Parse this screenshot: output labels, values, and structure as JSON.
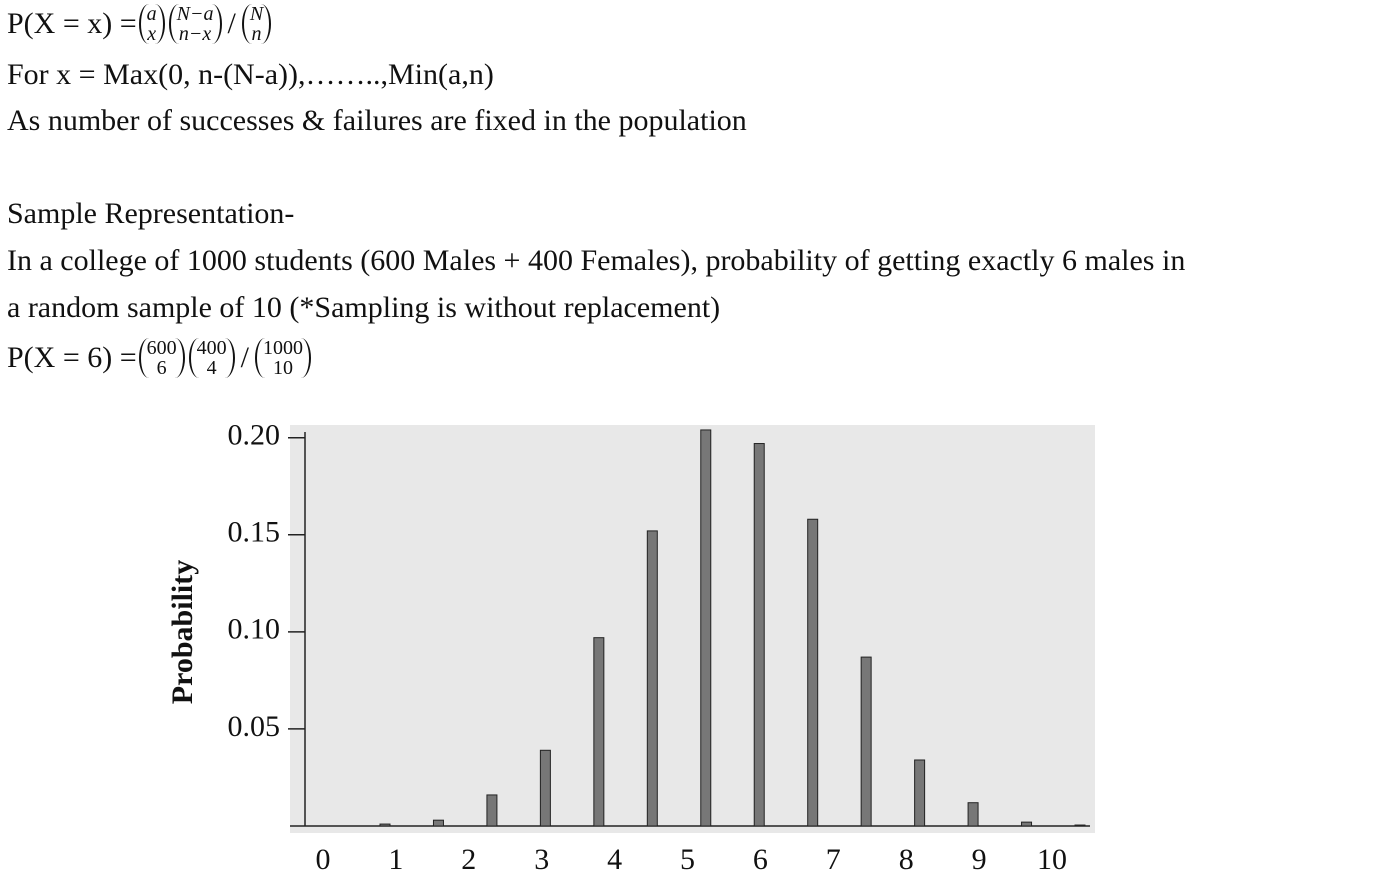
{
  "formula": {
    "lhs": "P(X = x) =",
    "terms": [
      {
        "top": "a",
        "bottom": "x"
      },
      {
        "top": "N−a",
        "bottom": "n−x"
      },
      {
        "op": "/"
      },
      {
        "top": "N",
        "bottom": "n"
      }
    ]
  },
  "range_line": "For x = Max(0, n-(N-a)),……..,Min(a,n)",
  "note": "As number of successes & failures are fixed in the population",
  "heading": "Sample Representation-",
  "example": [
    "In a college of 1000 students (600 Males + 400 Females), probability of getting exactly 6 males in",
    "a random sample of 10 (*Sampling is without replacement)"
  ],
  "example_formula": {
    "lhs": "P(X = 6) =",
    "terms": [
      {
        "top": "600",
        "bottom": "6"
      },
      {
        "top": "400",
        "bottom": "4"
      },
      {
        "op": "/"
      },
      {
        "top": "1000",
        "bottom": "10"
      }
    ]
  },
  "chart_data": {
    "type": "bar",
    "ylabel": "Probability",
    "values": [
      0.001,
      0.003,
      0.016,
      0.039,
      0.097,
      0.152,
      0.204,
      0.197,
      0.158,
      0.087,
      0.034,
      0.012,
      0.002,
      0.0005
    ],
    "color": "#777777",
    "xticks": [
      0,
      1,
      2,
      3,
      4,
      5,
      6,
      7,
      8,
      9,
      10
    ],
    "ylim": [
      0,
      0.205
    ],
    "yticks": [
      {
        "value": 0.2,
        "label": "0.20"
      },
      0.15,
      {
        "value": 0.1,
        "label": "0.10"
      },
      0.05
    ]
  }
}
